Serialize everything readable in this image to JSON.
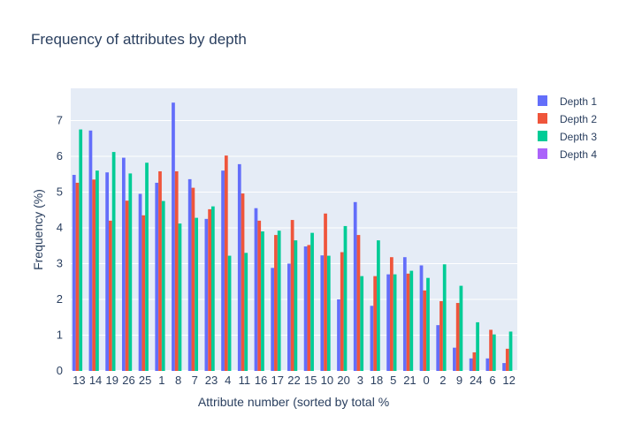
{
  "chart_data": {
    "type": "bar",
    "title": "Frequency of attributes by depth",
    "xlabel": "Attribute number (sorted by total %",
    "ylabel": "Frequency (%)",
    "ylim": [
      0,
      7.9
    ],
    "y_ticks": [
      0,
      1,
      2,
      3,
      4,
      5,
      6,
      7
    ],
    "grid": true,
    "legend_position": "top-right",
    "categories": [
      "13",
      "14",
      "19",
      "26",
      "25",
      "1",
      "8",
      "7",
      "23",
      "4",
      "11",
      "16",
      "17",
      "22",
      "15",
      "10",
      "20",
      "3",
      "18",
      "5",
      "21",
      "0",
      "2",
      "9",
      "24",
      "6",
      "12"
    ],
    "series": [
      {
        "name": "Depth 1",
        "color": "#636efa",
        "values": [
          5.48,
          6.72,
          5.55,
          5.96,
          4.95,
          5.26,
          7.5,
          5.36,
          4.25,
          5.6,
          5.78,
          4.55,
          2.88,
          3.0,
          3.48,
          3.23,
          2.0,
          4.72,
          1.82,
          2.7,
          3.18,
          2.95,
          1.28,
          0.65,
          0.35,
          0.35,
          0.22
        ]
      },
      {
        "name": "Depth 2",
        "color": "#ef553b",
        "values": [
          5.26,
          5.35,
          4.2,
          4.76,
          4.35,
          5.58,
          5.58,
          5.12,
          4.52,
          6.02,
          4.96,
          4.2,
          3.8,
          4.22,
          3.52,
          4.4,
          3.32,
          3.8,
          2.65,
          3.18,
          2.72,
          2.25,
          1.95,
          1.9,
          0.52,
          1.15,
          0.62
        ]
      },
      {
        "name": "Depth 3",
        "color": "#00cc96",
        "values": [
          6.75,
          5.6,
          6.12,
          5.52,
          5.82,
          4.75,
          4.12,
          4.28,
          4.6,
          3.22,
          3.3,
          3.9,
          3.92,
          3.65,
          3.86,
          3.22,
          4.05,
          2.65,
          3.65,
          2.7,
          2.8,
          2.6,
          2.98,
          2.38,
          1.36,
          1.02,
          1.1
        ]
      },
      {
        "name": "Depth 4",
        "color": "#ab63fa",
        "values": [
          0,
          0,
          0,
          0,
          0,
          0,
          0,
          0,
          0,
          0,
          0,
          0,
          0,
          0,
          0,
          0,
          0,
          0,
          0,
          0,
          0,
          0,
          0,
          0,
          0,
          0,
          0
        ]
      }
    ]
  }
}
